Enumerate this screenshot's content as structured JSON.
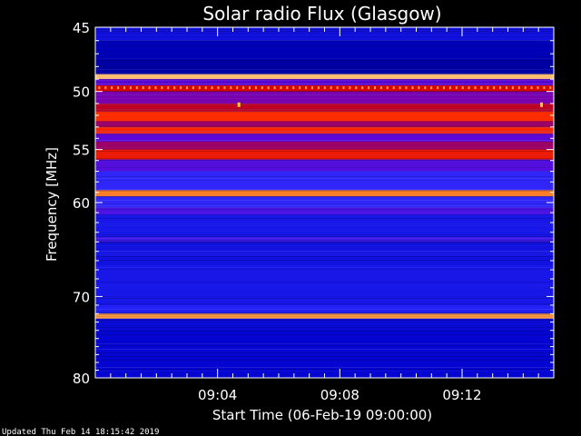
{
  "chart_data": {
    "type": "heatmap",
    "title": "Solar radio Flux (Glasgow)",
    "xlabel": "Start Time (06-Feb-19 09:00:00)",
    "ylabel": "Frequency [MHz]",
    "x_start_minutes": 0,
    "x_end_minutes": 15,
    "xlim_labels": [
      "09:00",
      "09:15"
    ],
    "x_ticks": [
      {
        "minutes": 4,
        "label": "09:04"
      },
      {
        "minutes": 8,
        "label": "09:08"
      },
      {
        "minutes": 12,
        "label": "09:12"
      }
    ],
    "ylim": [
      45,
      80
    ],
    "y_ticks": [
      {
        "value": 45,
        "label": "45"
      },
      {
        "value": 50,
        "label": "50"
      },
      {
        "value": 55,
        "label": "55"
      },
      {
        "value": 60,
        "label": "60"
      },
      {
        "value": 70,
        "label": "70"
      },
      {
        "value": 80,
        "label": "80"
      }
    ],
    "y_scale": "log",
    "bands": [
      {
        "from": 45.0,
        "to": 46.0,
        "level": 0.2
      },
      {
        "from": 46.0,
        "to": 47.5,
        "level": 0.12
      },
      {
        "from": 47.5,
        "to": 48.6,
        "level": 0.1
      },
      {
        "from": 48.6,
        "to": 49.0,
        "level": 0.92
      },
      {
        "from": 49.0,
        "to": 49.5,
        "level": 0.4
      },
      {
        "from": 49.5,
        "to": 50.0,
        "level": 0.6
      },
      {
        "from": 50.0,
        "to": 51.0,
        "level": 0.45
      },
      {
        "from": 51.0,
        "to": 51.7,
        "level": 0.55
      },
      {
        "from": 51.7,
        "to": 52.5,
        "level": 0.72
      },
      {
        "from": 52.5,
        "to": 53.0,
        "level": 0.5
      },
      {
        "from": 53.0,
        "to": 53.6,
        "level": 0.7
      },
      {
        "from": 53.6,
        "to": 54.3,
        "level": 0.4
      },
      {
        "from": 54.3,
        "to": 55.0,
        "level": 0.5
      },
      {
        "from": 55.0,
        "to": 55.9,
        "level": 0.66
      },
      {
        "from": 55.9,
        "to": 57.0,
        "level": 0.38
      },
      {
        "from": 57.0,
        "to": 58.8,
        "level": 0.3
      },
      {
        "from": 58.8,
        "to": 59.4,
        "level": 0.84
      },
      {
        "from": 59.4,
        "to": 60.5,
        "level": 0.3
      },
      {
        "from": 60.5,
        "to": 61.2,
        "level": 0.36
      },
      {
        "from": 61.2,
        "to": 63.5,
        "level": 0.22
      },
      {
        "from": 63.5,
        "to": 64.0,
        "level": 0.34
      },
      {
        "from": 64.0,
        "to": 66.5,
        "level": 0.2
      },
      {
        "from": 66.5,
        "to": 71.0,
        "level": 0.22
      },
      {
        "from": 71.0,
        "to": 72.0,
        "level": 0.26
      },
      {
        "from": 72.0,
        "to": 72.6,
        "level": 0.88
      },
      {
        "from": 72.6,
        "to": 74.0,
        "level": 0.18
      },
      {
        "from": 74.0,
        "to": 80.0,
        "level": 0.16
      }
    ],
    "spots": [
      {
        "minutes": 4.7,
        "freq": 51.1
      },
      {
        "minutes": 14.6,
        "freq": 51.1
      }
    ],
    "colormap": [
      "#000044",
      "#0000cc",
      "#2a2aff",
      "#6a00cc",
      "#cc0000",
      "#ff2a00",
      "#ff8a2a",
      "#ffffcc"
    ]
  },
  "footer_text": "Updated Thu Feb 14 18:15:42 2019"
}
